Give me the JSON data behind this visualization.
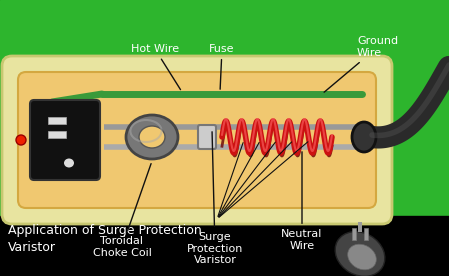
{
  "bg_color": "#2db52d",
  "bottom_bg": "#000000",
  "title_text": "Application of Surge Protection\nVaristor",
  "title_color": "#ffffff",
  "title_fontsize": 9,
  "labels": {
    "hot_wire": "Hot Wire",
    "fuse": "Fuse",
    "ground_wire": "Ground\nWire",
    "toroidal": "Toroidal\nChoke Coil",
    "surge": "Surge\nProtection\nVaristor",
    "neutral": "Neutral\nWire"
  },
  "label_color": "#ffffff",
  "label_fontsize": 8,
  "box_outer_color": "#e8e4a0",
  "box_inner_color": "#f0c870",
  "outlet_color": "#111111",
  "wire_green": "#3a9a3a",
  "wire_gray": "#aaaaaa",
  "coil_red": "#cc2222",
  "coil_dark": "#8b0000",
  "connector_color": "#333333",
  "cable_color": "#2a2a2a"
}
